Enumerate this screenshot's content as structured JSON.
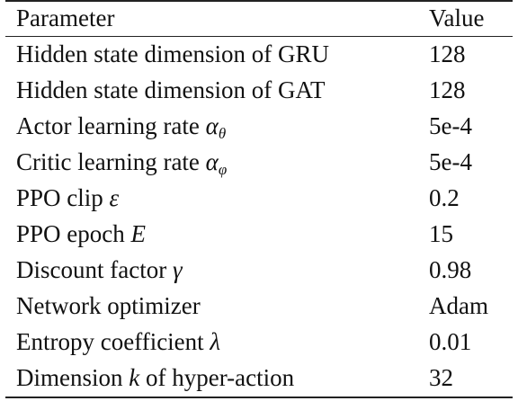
{
  "table": {
    "headers": {
      "parameter": "Parameter",
      "value": "Value"
    },
    "rows": [
      {
        "label": "Hidden state dimension of GRU",
        "symbol": "",
        "symbol_sub": "",
        "value": "128"
      },
      {
        "label": "Hidden state dimension of GAT",
        "symbol": "",
        "symbol_sub": "",
        "value": "128"
      },
      {
        "label": "Actor learning rate ",
        "symbol": "α",
        "symbol_sub": "θ",
        "value": "5e-4"
      },
      {
        "label": "Critic learning rate ",
        "symbol": "α",
        "symbol_sub": "φ",
        "value": "5e-4"
      },
      {
        "label": "PPO clip ",
        "symbol": "ε",
        "symbol_sub": "",
        "value": "0.2"
      },
      {
        "label": "PPO epoch ",
        "symbol": "E",
        "symbol_sub": "",
        "value": "15"
      },
      {
        "label": "Discount factor ",
        "symbol": "γ",
        "symbol_sub": "",
        "value": "0.98"
      },
      {
        "label": "Network optimizer",
        "symbol": "",
        "symbol_sub": "",
        "value": "Adam"
      },
      {
        "label": "Entropy coefficient ",
        "symbol": "λ",
        "symbol_sub": "",
        "value": "0.01"
      },
      {
        "label": "Dimension ",
        "symbol": "k",
        "symbol_sub": "",
        "label_after": " of hyper-action",
        "value": "32"
      }
    ]
  }
}
